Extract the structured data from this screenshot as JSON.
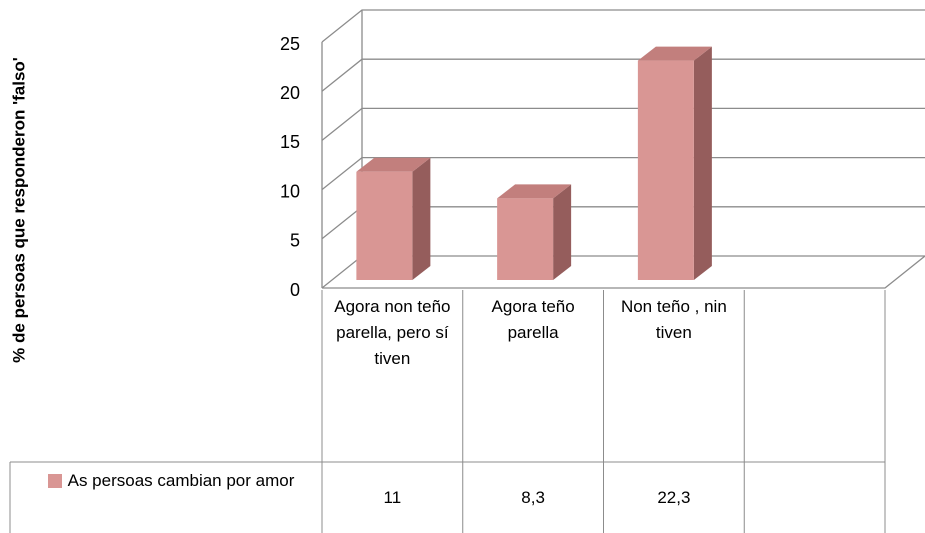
{
  "chart_data": {
    "type": "bar3d",
    "y_label": "% de persoas que responderon 'falso'",
    "categories": [
      "Agora non teño parella, pero sí tiven",
      "Agora teño parella",
      "Non teño , nin tiven",
      null
    ],
    "series": [
      {
        "name": "As persoas cambian por amor",
        "color": "#d99694",
        "values": [
          11,
          8.3,
          22.3,
          null
        ],
        "value_labels": [
          "11",
          "8,3",
          "22,3",
          null
        ]
      }
    ],
    "ylim": [
      0,
      25
    ],
    "yticks": [
      0,
      5,
      10,
      15,
      20,
      25
    ],
    "grid": true
  }
}
